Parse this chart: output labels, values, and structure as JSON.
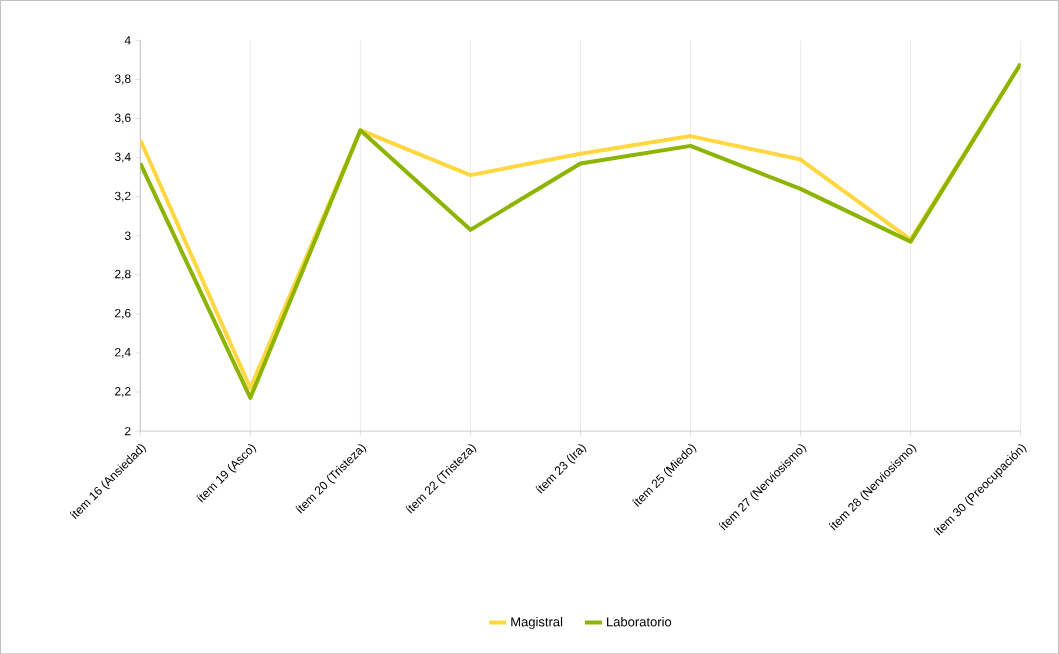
{
  "chart_data": {
    "type": "line",
    "categories": [
      "ítem 16 (Ansiedad)",
      "ítem 19 (Asco)",
      "ítem 20 (Tristeza)",
      "ítem 22 (Tristeza)",
      "ítem 23 (Ira)",
      "ítem 25 (Miedo)",
      "ítem 27 (Nerviosismo)",
      "ítem 28 (Nerviosismo)",
      "ítem 30 (Preocupación)"
    ],
    "series": [
      {
        "name": "Magistral",
        "color": "#ffd740",
        "values": [
          3.49,
          2.22,
          3.54,
          3.31,
          3.42,
          3.51,
          3.39,
          2.98,
          3.88
        ]
      },
      {
        "name": "Laboratorio",
        "color": "#8cb400",
        "values": [
          3.37,
          2.17,
          3.54,
          3.03,
          3.37,
          3.46,
          3.24,
          2.97,
          3.88
        ]
      }
    ],
    "ylim": [
      2,
      4
    ],
    "yticks": [
      2,
      {
        "value": 2.2,
        "label": "2,2"
      },
      {
        "value": 2.4,
        "label": "2,4"
      },
      {
        "value": 2.6,
        "label": "2,6"
      },
      {
        "value": 2.8,
        "label": "2,8"
      },
      3,
      {
        "value": 3.2,
        "label": "3,2"
      },
      {
        "value": 3.4,
        "label": "3,4"
      },
      {
        "value": 3.6,
        "label": "3,6"
      },
      {
        "value": 3.8,
        "label": "3,8"
      },
      4
    ],
    "grid": "x",
    "legend": "bottom"
  }
}
